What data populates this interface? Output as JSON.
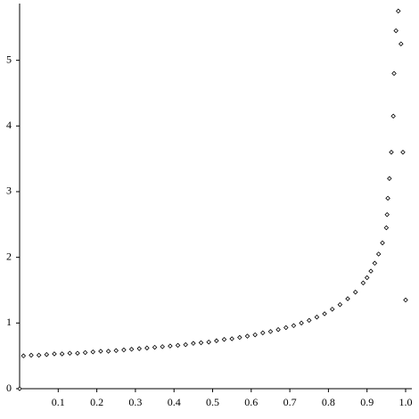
{
  "chart_data": {
    "type": "scatter",
    "color": "#000000",
    "xlim": [
      0,
      1
    ],
    "ylim": [
      0,
      5.85
    ],
    "xticks": [
      0.1,
      0.2,
      0.3,
      0.4,
      0.5,
      0.6,
      0.7,
      0.8,
      0.9,
      {
        "value": 1,
        "label": "1.0"
      }
    ],
    "yticks": [
      0,
      1,
      2,
      3,
      4,
      5
    ],
    "x": [
      0,
      0.01,
      0.03,
      0.05,
      0.07,
      0.09,
      0.11,
      0.13,
      0.15,
      0.17,
      0.19,
      0.21,
      0.23,
      0.25,
      0.27,
      0.29,
      0.31,
      0.33,
      0.35,
      0.37,
      0.39,
      0.41,
      0.43,
      0.45,
      0.47,
      0.49,
      0.51,
      0.53,
      0.55,
      0.57,
      0.59,
      0.61,
      0.63,
      0.65,
      0.67,
      0.69,
      0.71,
      0.73,
      0.75,
      0.77,
      0.79,
      0.81,
      0.83,
      0.85,
      0.87,
      0.89,
      0.9,
      0.91,
      0.92,
      0.93,
      0.94,
      0.95,
      0.952,
      0.954,
      0.958,
      0.963,
      0.968,
      0.97,
      0.975,
      0.981,
      0.988,
      0.993,
      1.0
    ],
    "values": [
      0,
      0.5,
      0.51,
      0.51,
      0.52,
      0.53,
      0.53,
      0.54,
      0.54,
      0.55,
      0.56,
      0.57,
      0.57,
      0.58,
      0.59,
      0.6,
      0.61,
      0.62,
      0.63,
      0.64,
      0.65,
      0.66,
      0.67,
      0.69,
      0.7,
      0.71,
      0.73,
      0.75,
      0.76,
      0.78,
      0.8,
      0.82,
      0.85,
      0.87,
      0.9,
      0.93,
      0.96,
      1.0,
      1.04,
      1.09,
      1.14,
      1.21,
      1.28,
      1.37,
      1.47,
      1.61,
      1.69,
      1.79,
      1.91,
      2.05,
      2.22,
      2.45,
      2.65,
      2.9,
      3.2,
      3.6,
      4.15,
      4.8,
      5.45,
      5.75,
      5.25,
      3.6,
      1.35
    ]
  }
}
